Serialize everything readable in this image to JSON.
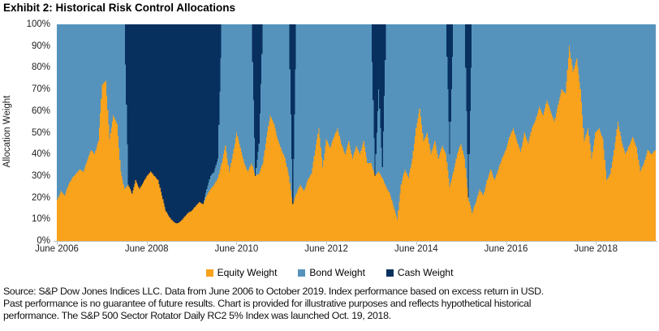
{
  "title": "Exhibit 2: Historical Risk Control Allocations",
  "chart_data": {
    "type": "area",
    "stacked": true,
    "stack_total_percent": 100,
    "title": "Exhibit 2: Historical Risk Control Allocations",
    "xlabel": "",
    "ylabel": "Allocation Weight",
    "ylim": [
      0,
      100
    ],
    "y_tick_labels": [
      "100%",
      "90%",
      "80%",
      "70%",
      "60%",
      "50%",
      "40%",
      "30%",
      "20%",
      "10%",
      "0%"
    ],
    "x_unit": "months since June 2006",
    "x_range": [
      "June 2006",
      "October 2019"
    ],
    "x_tick_labels": [
      "June 2006",
      "June 2008",
      "June 2010",
      "June 2012",
      "June 2014",
      "June 2016",
      "June 2018"
    ],
    "x_tick_indices": [
      0,
      24,
      48,
      72,
      96,
      120,
      144
    ],
    "n_points": 161,
    "grid": false,
    "legend_position": "bottom",
    "colors": {
      "equity": "#F9A21C",
      "bond": "#5593BD",
      "cash": "#08305E",
      "axis": "#BFBFBF"
    },
    "series": [
      {
        "name": "Equity Weight",
        "color": "#F9A21C",
        "values": [
          19,
          23,
          21,
          26,
          29,
          31,
          33,
          32,
          37,
          42,
          40,
          46,
          72,
          74,
          47,
          58,
          54,
          32,
          24,
          26,
          22,
          28,
          24,
          27,
          30,
          32,
          30,
          28,
          21,
          14,
          11,
          9,
          8,
          9,
          11,
          13,
          14,
          16,
          18,
          17,
          21,
          24,
          26,
          29,
          36,
          44,
          32,
          40,
          50,
          43,
          36,
          32,
          36,
          30,
          31,
          36,
          48,
          58,
          54,
          47,
          42,
          38,
          30,
          17,
          22,
          26,
          23,
          28,
          31,
          42,
          52,
          34,
          47,
          43,
          48,
          52,
          45,
          40,
          46,
          38,
          44,
          40,
          46,
          36,
          36,
          30,
          32,
          29,
          25,
          22,
          16,
          10,
          26,
          33,
          29,
          38,
          52,
          61,
          46,
          50,
          40,
          46,
          38,
          44,
          40,
          25,
          32,
          40,
          45,
          38,
          20,
          13,
          18,
          24,
          21,
          28,
          33,
          28,
          33,
          38,
          42,
          48,
          52,
          46,
          41,
          50,
          45,
          52,
          56,
          62,
          58,
          65,
          60,
          55,
          63,
          70,
          68,
          90,
          78,
          84,
          70,
          46,
          52,
          38,
          50,
          52,
          47,
          28,
          31,
          42,
          55,
          46,
          40,
          44,
          48,
          43,
          32,
          36,
          42,
          40,
          42
        ]
      },
      {
        "name": "Bond Weight",
        "color": "#5593BD",
        "derived": "100 - equity - cash (remainder of 100% stack)"
      },
      {
        "name": "Cash Weight",
        "color": "#08305E",
        "values": [
          0,
          0,
          0,
          0,
          0,
          0,
          0,
          0,
          0,
          0,
          0,
          0,
          0,
          0,
          0,
          0,
          0,
          0,
          0,
          74,
          78,
          72,
          76,
          73,
          70,
          68,
          70,
          72,
          79,
          86,
          89,
          91,
          92,
          91,
          89,
          87,
          86,
          84,
          82,
          83,
          76,
          70,
          68,
          62,
          0,
          0,
          0,
          0,
          0,
          0,
          0,
          0,
          0,
          70,
          55,
          0,
          0,
          0,
          0,
          0,
          0,
          0,
          0,
          83,
          0,
          0,
          0,
          0,
          0,
          0,
          0,
          0,
          0,
          0,
          0,
          0,
          0,
          0,
          0,
          0,
          0,
          0,
          0,
          0,
          0,
          70,
          30,
          66,
          0,
          0,
          0,
          0,
          0,
          0,
          0,
          0,
          0,
          0,
          0,
          0,
          0,
          0,
          0,
          0,
          0,
          60,
          0,
          0,
          0,
          0,
          80,
          0,
          0,
          0,
          0,
          0,
          0,
          0,
          0,
          0,
          0,
          0,
          0,
          0,
          0,
          0,
          0,
          0,
          0,
          0,
          0,
          0,
          0,
          0,
          0,
          0,
          0,
          0,
          0,
          0,
          0,
          0,
          0,
          0,
          0,
          0,
          0,
          0,
          0,
          0,
          0,
          0,
          0,
          0,
          0,
          0,
          0,
          0,
          0,
          0,
          0
        ]
      }
    ],
    "annotations": {
      "cash_regime": "Cash dominates from roughly Jan 2008 through Jan 2010; brief cash spikes near Nov 2010, Sep 2011, Jul-Oct 2013, Mar 2015 and Aug 2015",
      "equity_peaks": "Equity peaks ~74% mid-2007, ~90% around late 2017 / early 2018; trough ~8% early 2009"
    }
  },
  "legend": [
    {
      "label": "Equity Weight",
      "color": "#F9A21C"
    },
    {
      "label": "Bond Weight",
      "color": "#5593BD"
    },
    {
      "label": "Cash Weight",
      "color": "#08305E"
    }
  ],
  "source": {
    "lines": [
      "Source: S&P Dow Jones Indices LLC. Data from June 2006 to October 2019. Index performance based on excess return in USD.",
      "Past performance is no guarantee of future results. Chart is provided for illustrative purposes and reflects hypothetical historical",
      "performance. The S&P 500 Sector Rotator Daily RC2 5% Index was launched Oct. 19, 2018."
    ]
  }
}
